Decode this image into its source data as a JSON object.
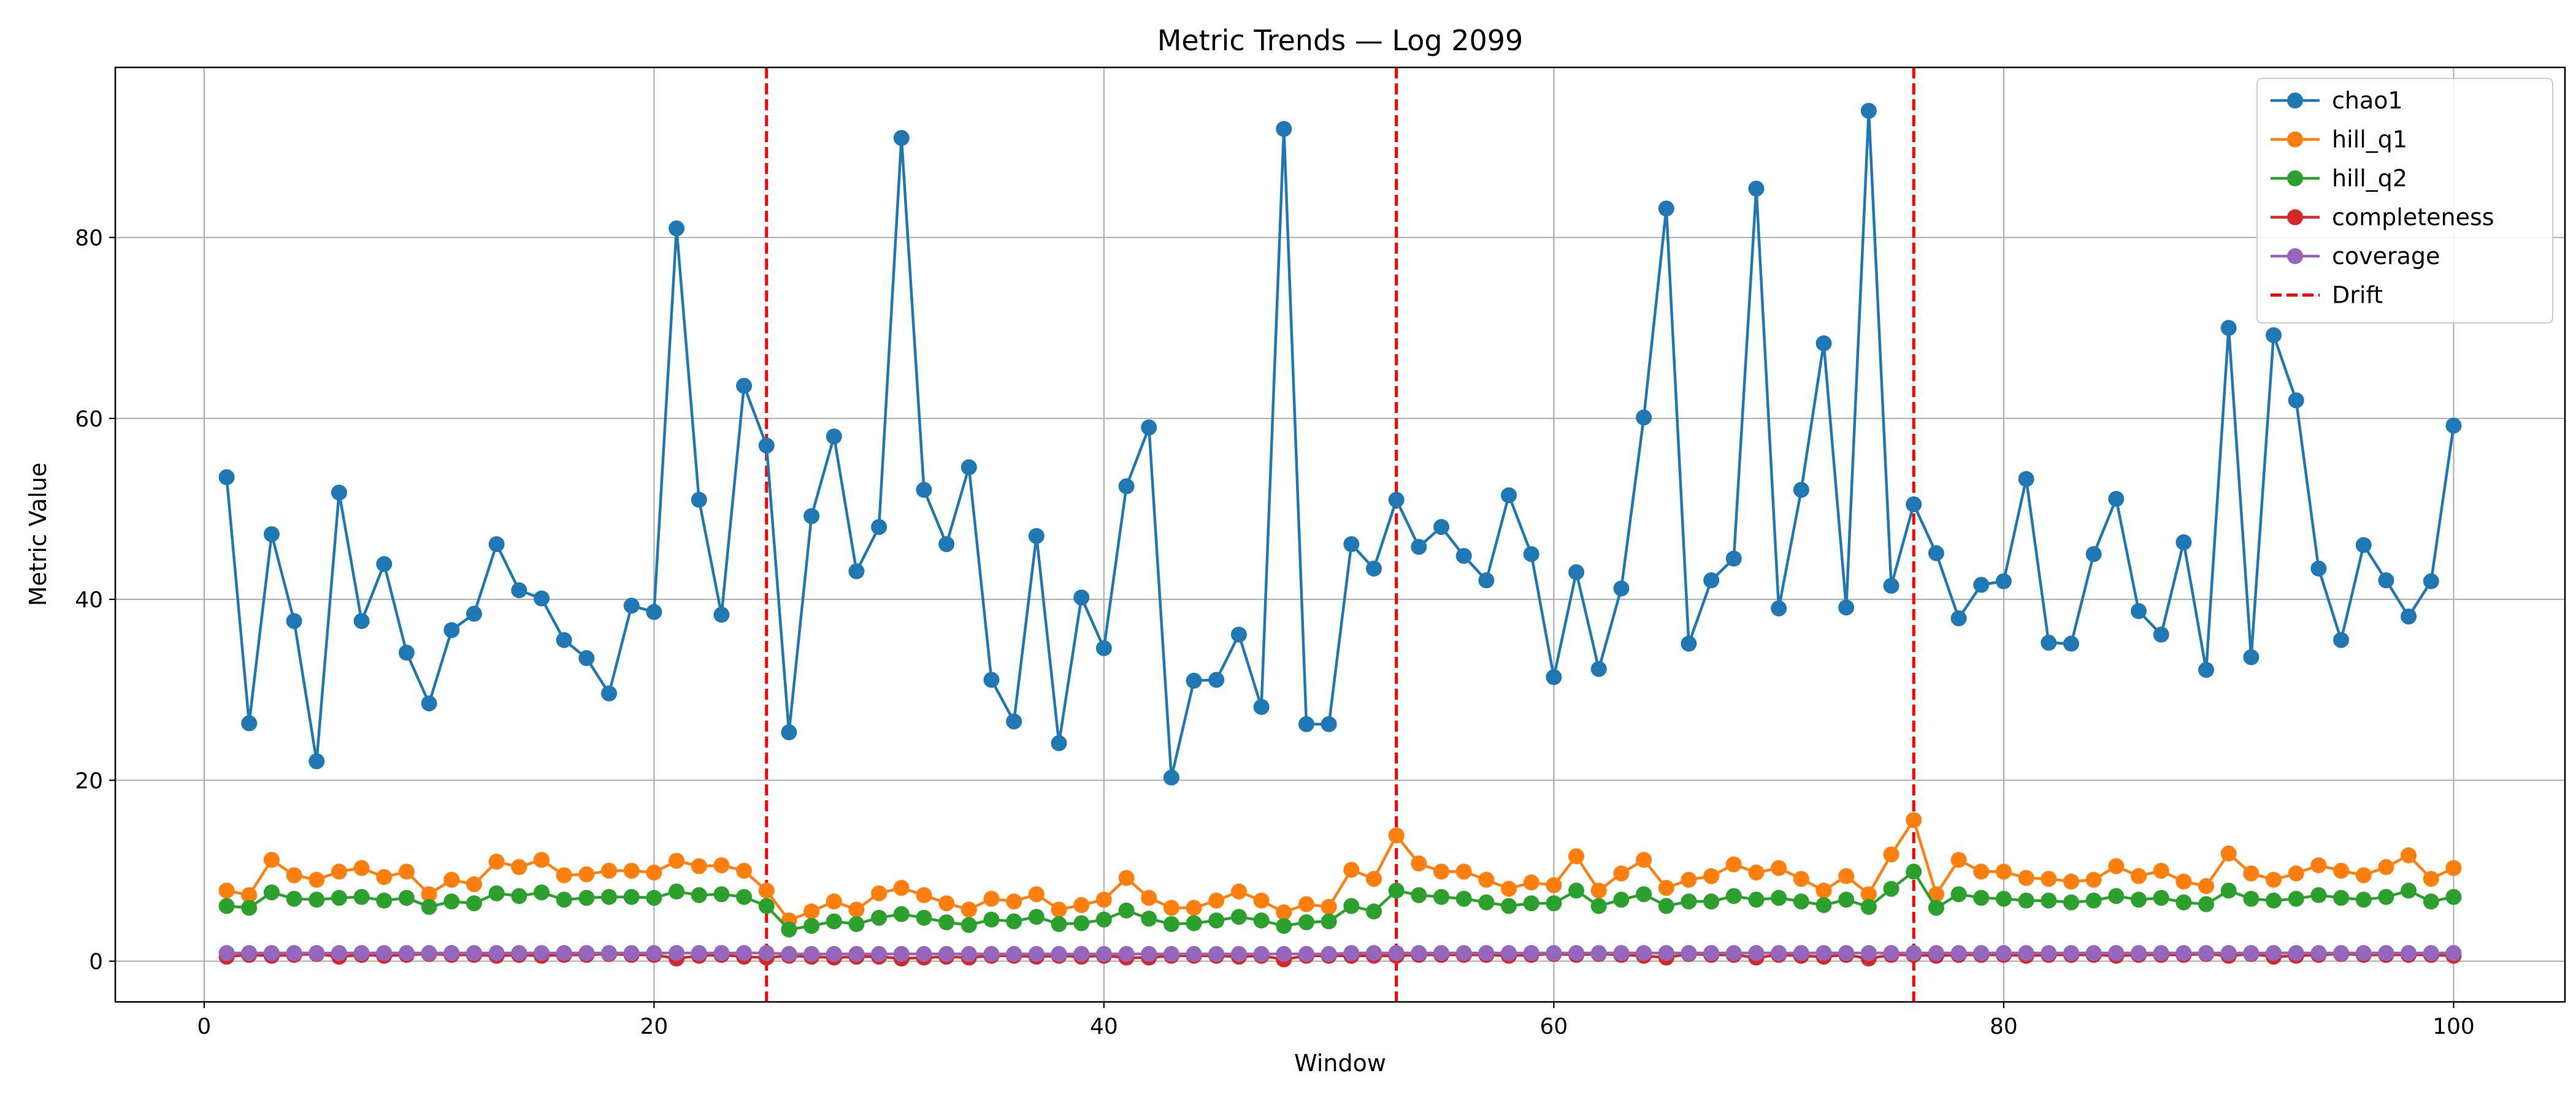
{
  "chart_data": {
    "type": "line",
    "title": "Metric Trends — Log 2099",
    "xlabel": "Window",
    "ylabel": "Metric Value",
    "xlim": [
      -3.95,
      104.95
    ],
    "ylim": [
      -4.5,
      98.8
    ],
    "xticks": [
      0,
      20,
      40,
      60,
      80,
      100
    ],
    "yticks": [
      0,
      20,
      40,
      60,
      80
    ],
    "grid": true,
    "legend_position": "top-right",
    "x": [
      1,
      2,
      3,
      4,
      5,
      6,
      7,
      8,
      9,
      10,
      11,
      12,
      13,
      14,
      15,
      16,
      17,
      18,
      19,
      20,
      21,
      22,
      23,
      24,
      25,
      26,
      27,
      28,
      29,
      30,
      31,
      32,
      33,
      34,
      35,
      36,
      37,
      38,
      39,
      40,
      41,
      42,
      43,
      44,
      45,
      46,
      47,
      48,
      49,
      50,
      51,
      52,
      53,
      54,
      55,
      56,
      57,
      58,
      59,
      60,
      61,
      62,
      63,
      64,
      65,
      66,
      67,
      68,
      69,
      70,
      71,
      72,
      73,
      74,
      75,
      76,
      77,
      78,
      79,
      80,
      81,
      82,
      83,
      84,
      85,
      86,
      87,
      88,
      89,
      90,
      91,
      92,
      93,
      94,
      95,
      96,
      97,
      98,
      99,
      100
    ],
    "series": [
      {
        "name": "chao1",
        "color": "#1f77b4",
        "values": [
          53.5,
          26.3,
          47.2,
          37.6,
          22.1,
          51.8,
          37.6,
          43.9,
          34.1,
          28.5,
          36.6,
          38.4,
          46.1,
          41.0,
          40.1,
          35.5,
          33.5,
          29.6,
          39.3,
          38.6,
          81.0,
          51.0,
          38.3,
          63.6,
          57.0,
          25.3,
          49.2,
          58.0,
          43.1,
          48.0,
          91.0,
          52.1,
          46.1,
          54.6,
          31.1,
          26.5,
          47.0,
          24.1,
          40.2,
          34.6,
          52.5,
          59.0,
          20.3,
          31.0,
          31.1,
          36.1,
          28.1,
          92.0,
          26.2,
          26.2,
          46.1,
          43.4,
          51.0,
          45.8,
          48.0,
          44.8,
          42.1,
          51.5,
          45.0,
          31.4,
          43.0,
          32.3,
          41.2,
          60.1,
          83.2,
          35.1,
          42.1,
          44.5,
          85.4,
          39.0,
          52.1,
          68.3,
          39.1,
          94.0,
          41.5,
          50.5,
          45.1,
          37.9,
          41.6,
          42.0,
          53.3,
          35.2,
          35.1,
          45.0,
          51.1,
          38.7,
          36.1,
          46.3,
          32.2,
          70.0,
          33.6,
          69.2,
          62.0,
          43.4,
          35.5,
          46.0,
          42.1,
          38.1,
          42.0,
          59.2
        ]
      },
      {
        "name": "hill_q1",
        "color": "#ff7f0e",
        "values": [
          7.8,
          7.3,
          11.2,
          9.5,
          9.0,
          9.9,
          10.3,
          9.3,
          9.9,
          7.4,
          9.0,
          8.5,
          11.0,
          10.4,
          11.2,
          9.5,
          9.6,
          10.0,
          10.0,
          9.8,
          11.1,
          10.5,
          10.6,
          10.0,
          7.8,
          4.5,
          5.5,
          6.6,
          5.7,
          7.5,
          8.1,
          7.3,
          6.4,
          5.7,
          6.9,
          6.6,
          7.4,
          5.7,
          6.2,
          6.8,
          9.2,
          7.0,
          5.9,
          5.9,
          6.7,
          7.7,
          6.7,
          5.4,
          6.3,
          6.0,
          10.1,
          9.1,
          13.9,
          10.8,
          9.9,
          9.9,
          9.0,
          8.0,
          8.7,
          8.4,
          11.6,
          7.8,
          9.7,
          11.2,
          8.1,
          9.0,
          9.4,
          10.7,
          9.8,
          10.3,
          9.1,
          7.8,
          9.4,
          7.4,
          11.8,
          15.6,
          7.4,
          11.2,
          9.9,
          9.9,
          9.2,
          9.1,
          8.8,
          9.0,
          10.5,
          9.4,
          10.0,
          8.8,
          8.3,
          11.9,
          9.7,
          9.0,
          9.7,
          10.6,
          10.0,
          9.5,
          10.4,
          11.7,
          9.1,
          10.3
        ]
      },
      {
        "name": "hill_q2",
        "color": "#2ca02c",
        "values": [
          6.1,
          5.9,
          7.6,
          6.9,
          6.8,
          7.0,
          7.1,
          6.7,
          7.0,
          6.0,
          6.6,
          6.4,
          7.5,
          7.2,
          7.6,
          6.8,
          7.0,
          7.1,
          7.1,
          7.0,
          7.7,
          7.3,
          7.4,
          7.1,
          6.1,
          3.5,
          3.9,
          4.4,
          4.1,
          4.8,
          5.2,
          4.8,
          4.3,
          4.0,
          4.6,
          4.4,
          4.9,
          4.1,
          4.2,
          4.6,
          5.6,
          4.7,
          4.1,
          4.2,
          4.5,
          4.9,
          4.5,
          3.9,
          4.3,
          4.4,
          6.1,
          5.5,
          7.8,
          7.3,
          7.1,
          6.9,
          6.5,
          6.1,
          6.4,
          6.4,
          7.8,
          6.1,
          6.8,
          7.4,
          6.1,
          6.6,
          6.6,
          7.2,
          6.8,
          7.0,
          6.6,
          6.2,
          6.8,
          6.0,
          8.0,
          9.9,
          5.9,
          7.4,
          7.0,
          6.9,
          6.7,
          6.7,
          6.5,
          6.7,
          7.2,
          6.8,
          7.0,
          6.5,
          6.3,
          7.8,
          6.9,
          6.7,
          6.9,
          7.3,
          7.0,
          6.8,
          7.1,
          7.8,
          6.6,
          7.1
        ]
      },
      {
        "name": "completeness",
        "color": "#d62728",
        "values": [
          0.5,
          0.7,
          0.6,
          0.7,
          0.8,
          0.5,
          0.7,
          0.6,
          0.7,
          0.8,
          0.7,
          0.7,
          0.6,
          0.7,
          0.6,
          0.7,
          0.7,
          0.8,
          0.7,
          0.7,
          0.3,
          0.6,
          0.7,
          0.5,
          0.4,
          0.6,
          0.5,
          0.4,
          0.5,
          0.5,
          0.3,
          0.4,
          0.5,
          0.4,
          0.6,
          0.6,
          0.5,
          0.6,
          0.5,
          0.6,
          0.4,
          0.4,
          0.6,
          0.6,
          0.6,
          0.5,
          0.6,
          0.2,
          0.6,
          0.6,
          0.6,
          0.6,
          0.6,
          0.7,
          0.7,
          0.7,
          0.7,
          0.6,
          0.7,
          0.8,
          0.7,
          0.8,
          0.7,
          0.6,
          0.4,
          0.8,
          0.7,
          0.7,
          0.4,
          0.7,
          0.6,
          0.5,
          0.7,
          0.3,
          0.7,
          0.7,
          0.6,
          0.7,
          0.7,
          0.7,
          0.6,
          0.7,
          0.7,
          0.7,
          0.6,
          0.7,
          0.7,
          0.7,
          0.8,
          0.6,
          0.8,
          0.5,
          0.6,
          0.7,
          0.8,
          0.7,
          0.7,
          0.7,
          0.7,
          0.6
        ]
      },
      {
        "name": "coverage",
        "color": "#9467bd",
        "values": [
          0.9,
          0.9,
          0.9,
          0.9,
          0.9,
          0.9,
          0.9,
          0.9,
          0.9,
          0.9,
          0.9,
          0.9,
          0.9,
          0.9,
          0.9,
          0.9,
          0.9,
          0.9,
          0.9,
          0.9,
          0.9,
          0.9,
          0.9,
          0.9,
          0.9,
          0.8,
          0.8,
          0.8,
          0.8,
          0.8,
          0.8,
          0.8,
          0.8,
          0.8,
          0.8,
          0.8,
          0.8,
          0.8,
          0.8,
          0.8,
          0.8,
          0.8,
          0.8,
          0.8,
          0.8,
          0.8,
          0.8,
          0.8,
          0.8,
          0.8,
          0.9,
          0.9,
          0.9,
          0.9,
          0.9,
          0.9,
          0.9,
          0.9,
          0.9,
          0.9,
          0.9,
          0.9,
          0.9,
          0.9,
          0.9,
          0.9,
          0.9,
          0.9,
          0.9,
          0.9,
          0.9,
          0.9,
          0.9,
          0.9,
          0.9,
          0.9,
          0.9,
          0.9,
          0.9,
          0.9,
          0.9,
          0.9,
          0.9,
          0.9,
          0.9,
          0.9,
          0.9,
          0.9,
          0.9,
          0.9,
          0.9,
          0.9,
          0.9,
          0.9,
          0.9,
          0.9,
          0.9,
          0.9,
          0.9,
          0.9
        ]
      }
    ],
    "drift": {
      "name": "Drift",
      "color": "#ff0000",
      "x": [
        25,
        53,
        76
      ]
    }
  }
}
